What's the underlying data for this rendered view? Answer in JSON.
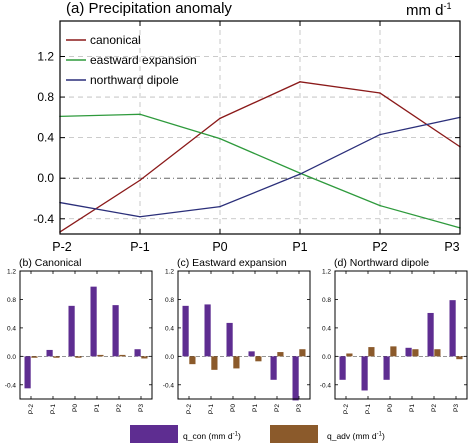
{
  "colors": {
    "canonical": "#8b1a1a",
    "eastward": "#2e9a3c",
    "northward": "#2b2f7a",
    "q_con": "#5e2d91",
    "q_adv": "#8b5a2b",
    "grid": "#bbbbbb"
  },
  "chart_data": [
    {
      "type": "line",
      "title": "(a) Precipitation anomaly",
      "unit": "mm d",
      "unit_sup": "-1",
      "categories": [
        "P-2",
        "P-1",
        "P0",
        "P1",
        "P2",
        "P3"
      ],
      "ylim": [
        -0.55,
        1.55
      ],
      "yticks": [
        "1.2",
        "0.8",
        "0.4",
        "0.0",
        "-0.4"
      ],
      "ytick_values": [
        1.2,
        0.8,
        0.4,
        0.0,
        -0.4
      ],
      "grid": true,
      "legend": "top-left",
      "series": [
        {
          "name": "canonical",
          "color_key": "canonical",
          "values": [
            -0.53,
            -0.02,
            0.59,
            0.95,
            0.84,
            0.31
          ]
        },
        {
          "name": "eastward expansion",
          "color_key": "eastward",
          "values": [
            0.61,
            0.63,
            0.39,
            0.05,
            -0.27,
            -0.49
          ]
        },
        {
          "name": "northward dipole",
          "color_key": "northward",
          "values": [
            -0.24,
            -0.38,
            -0.28,
            0.04,
            0.43,
            0.6
          ]
        }
      ]
    },
    {
      "type": "bar",
      "title": "(b) Canonical",
      "categories": [
        "P-2",
        "P-1",
        "P0",
        "P1",
        "P2",
        "P3"
      ],
      "ylim": [
        -0.6,
        1.2
      ],
      "yticks": [
        "1.2",
        "0.8",
        "0.4",
        "0.0",
        "-0.4"
      ],
      "ytick_values": [
        1.2,
        0.8,
        0.4,
        0.0,
        -0.4
      ],
      "series": [
        {
          "name": "q_con",
          "color_key": "q_con",
          "values": [
            -0.45,
            0.09,
            0.71,
            0.98,
            0.72,
            0.1
          ]
        },
        {
          "name": "q_adv",
          "color_key": "q_adv",
          "values": [
            -0.02,
            -0.02,
            -0.02,
            0.02,
            0.02,
            -0.03
          ]
        }
      ]
    },
    {
      "type": "bar",
      "title": "(c) Eastward expansion",
      "categories": [
        "P-2",
        "P-1",
        "P0",
        "P1",
        "P2",
        "P3"
      ],
      "ylim": [
        -0.6,
        1.2
      ],
      "yticks": [
        "1.2",
        "0.8",
        "0.4",
        "0.0",
        "-0.4"
      ],
      "ytick_values": [
        1.2,
        0.8,
        0.4,
        0.0,
        -0.4
      ],
      "series": [
        {
          "name": "q_con",
          "color_key": "q_con",
          "values": [
            0.71,
            0.73,
            0.47,
            0.07,
            -0.33,
            -0.62
          ]
        },
        {
          "name": "q_adv",
          "color_key": "q_adv",
          "values": [
            -0.11,
            -0.19,
            -0.17,
            -0.07,
            0.06,
            0.1
          ]
        }
      ]
    },
    {
      "type": "bar",
      "title": "(d) Northward dipole",
      "categories": [
        "P-2",
        "P-1",
        "P0",
        "P1",
        "P2",
        "P3"
      ],
      "ylim": [
        -0.6,
        1.2
      ],
      "yticks": [
        "1.2",
        "0.8",
        "0.4",
        "0.0",
        "-0.4"
      ],
      "ytick_values": [
        1.2,
        0.8,
        0.4,
        0.0,
        -0.4
      ],
      "series": [
        {
          "name": "q_con",
          "color_key": "q_con",
          "values": [
            -0.33,
            -0.48,
            -0.33,
            0.12,
            0.61,
            0.79
          ]
        },
        {
          "name": "q_adv",
          "color_key": "q_adv",
          "values": [
            0.04,
            0.13,
            0.14,
            0.1,
            0.1,
            -0.04
          ]
        }
      ]
    }
  ],
  "bottom_legend": {
    "items": [
      {
        "label": "q_con (mm d",
        "sup": "-1",
        "close": ")",
        "color_key": "q_con"
      },
      {
        "label": "q_adv (mm d",
        "sup": "-1",
        "close": ")",
        "color_key": "q_adv"
      }
    ]
  }
}
